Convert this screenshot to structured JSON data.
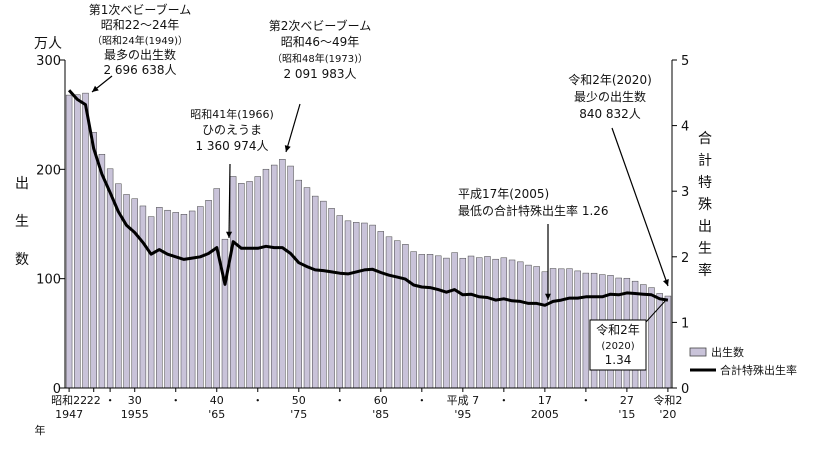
{
  "chart_data": {
    "type": "bar",
    "left_axis": {
      "unit": "万人",
      "label_chars": [
        "出",
        "生",
        "数"
      ],
      "ylim": [
        0,
        300
      ],
      "ticks": [
        "0",
        "100",
        "200",
        "300"
      ]
    },
    "right_axis": {
      "label_chars": [
        "合",
        "計",
        "特",
        "殊",
        "出",
        "生",
        "率"
      ],
      "ylim": [
        0,
        5
      ],
      "ticks": [
        "0",
        "1",
        "2",
        "3",
        "4",
        "5"
      ]
    },
    "x_start_year": 1947,
    "x_end_year": 2020,
    "x_ticks": [
      {
        "year": 1947,
        "top": "昭和22",
        "bottom": "1947"
      },
      {
        "year": 1950,
        "top": "22",
        "bottom": ""
      },
      {
        "year": 1952,
        "top": "・",
        "bottom": ""
      },
      {
        "year": 1955,
        "top": "30",
        "bottom": "1955"
      },
      {
        "year": 1960,
        "top": "・",
        "bottom": ""
      },
      {
        "year": 1965,
        "top": "40",
        "bottom": "'65"
      },
      {
        "year": 1970,
        "top": "・",
        "bottom": ""
      },
      {
        "year": 1975,
        "top": "50",
        "bottom": "'75"
      },
      {
        "year": 1980,
        "top": "・",
        "bottom": ""
      },
      {
        "year": 1985,
        "top": "60",
        "bottom": "'85"
      },
      {
        "year": 1990,
        "top": "・",
        "bottom": ""
      },
      {
        "year": 1995,
        "top": "平成 7",
        "bottom": "'95"
      },
      {
        "year": 2000,
        "top": "・",
        "bottom": ""
      },
      {
        "year": 2005,
        "top": "17",
        "bottom": "2005"
      },
      {
        "year": 2010,
        "top": "・",
        "bottom": ""
      },
      {
        "year": 2015,
        "top": "27",
        "bottom": "'15"
      },
      {
        "year": 2020,
        "top": "令和2",
        "bottom": "'20"
      }
    ],
    "x_suffix": "年",
    "series": [
      {
        "name": "出生数",
        "type": "bar",
        "axis": "left",
        "color": "#c9c3d9",
        "values": [
          267.9,
          268.2,
          269.7,
          233.8,
          213.8,
          200.5,
          186.8,
          177.0,
          173.1,
          166.5,
          156.7,
          165.3,
          162.6,
          160.6,
          158.9,
          161.9,
          166.0,
          171.7,
          182.4,
          136.1,
          193.5,
          187.2,
          188.9,
          193.4,
          200.1,
          203.9,
          209.2,
          203.0,
          190.1,
          183.3,
          175.5,
          170.9,
          164.3,
          157.7,
          152.9,
          151.5,
          150.9,
          149.0,
          143.2,
          138.3,
          134.7,
          131.4,
          124.7,
          122.2,
          122.3,
          120.9,
          118.8,
          123.8,
          118.7,
          120.7,
          119.2,
          120.3,
          117.8,
          119.1,
          117.1,
          115.4,
          112.4,
          111.1,
          106.3,
          109.3,
          109.0,
          109.1,
          107.1,
          105.1,
          105.0,
          103.7,
          103.0,
          100.6,
          100.4,
          97.7,
          94.6,
          91.8,
          86.5,
          84.1
        ]
      },
      {
        "name": "合計特殊出生率",
        "type": "line",
        "axis": "right",
        "color": "#000000",
        "values": [
          4.54,
          4.4,
          4.32,
          3.65,
          3.26,
          2.98,
          2.69,
          2.48,
          2.37,
          2.22,
          2.04,
          2.11,
          2.04,
          2.0,
          1.96,
          1.98,
          2.0,
          2.05,
          2.14,
          1.58,
          2.23,
          2.13,
          2.13,
          2.13,
          2.16,
          2.14,
          2.14,
          2.05,
          1.91,
          1.85,
          1.8,
          1.79,
          1.77,
          1.75,
          1.74,
          1.77,
          1.8,
          1.81,
          1.76,
          1.72,
          1.69,
          1.66,
          1.57,
          1.54,
          1.53,
          1.5,
          1.46,
          1.5,
          1.42,
          1.43,
          1.39,
          1.38,
          1.34,
          1.36,
          1.33,
          1.32,
          1.29,
          1.29,
          1.26,
          1.32,
          1.34,
          1.37,
          1.37,
          1.39,
          1.39,
          1.39,
          1.43,
          1.42,
          1.45,
          1.44,
          1.43,
          1.42,
          1.36,
          1.34
        ]
      }
    ],
    "annotations": [
      {
        "id": "boom1",
        "lines": [
          "第1次ベビーブーム",
          "昭和22〜24年",
          "（昭和24年(1949)）",
          "最多の出生数",
          "2 696 638人"
        ]
      },
      {
        "id": "boom2",
        "lines": [
          "第2次ベビーブーム",
          "昭和46〜49年",
          "（昭和48年(1973)）",
          "2 091 983人"
        ]
      },
      {
        "id": "hinoe",
        "lines": [
          "昭和41年(1966)",
          "ひのえうま",
          "1 360 974人"
        ]
      },
      {
        "id": "min_births",
        "lines": [
          "令和2年(2020)",
          "最少の出生数",
          "840 832人"
        ]
      },
      {
        "id": "min_tfr",
        "lines": [
          "平成17年(2005)",
          "最低の合計特殊出生率  1.26"
        ]
      },
      {
        "id": "tfr_2020",
        "lines": [
          "令和2年",
          "(2020)",
          "1.34"
        ]
      }
    ],
    "legend": [
      {
        "label": "出生数",
        "kind": "bar"
      },
      {
        "label": "合計特殊出生率",
        "kind": "line"
      }
    ],
    "grid": false,
    "legend_position": "bottom-right"
  }
}
